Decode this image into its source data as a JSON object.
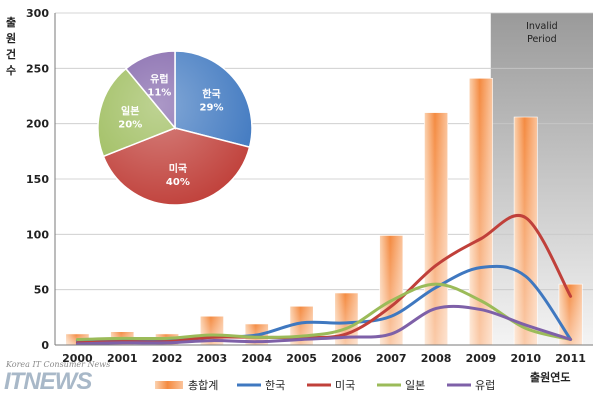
{
  "chart_data": [
    {
      "type": "bar",
      "categories": [
        "2000",
        "2001",
        "2002",
        "2003",
        "2004",
        "2005",
        "2006",
        "2007",
        "2008",
        "2009",
        "2010",
        "2011"
      ],
      "ylim": [
        0,
        300
      ],
      "yticks": [
        0,
        50,
        100,
        150,
        200,
        250,
        300
      ],
      "ylabel": "출원건수",
      "xlabel": "출원연도",
      "grid": true,
      "shaded_region": {
        "from": "2010",
        "to": "2011",
        "label_line1": "Invalid",
        "label_line2": "Period",
        "color": "#a8a8a8"
      },
      "series": [
        {
          "name": "총합계",
          "kind": "bar",
          "color": "#f7a060",
          "values": [
            10,
            12,
            10,
            26,
            19,
            35,
            47,
            99,
            210,
            241,
            206,
            55
          ]
        },
        {
          "name": "한국",
          "kind": "line",
          "color": "#3f78c0",
          "values": [
            4,
            5,
            5,
            7,
            9,
            20,
            20,
            26,
            52,
            70,
            62,
            5
          ]
        },
        {
          "name": "미국",
          "kind": "line",
          "color": "#c0403a",
          "values": [
            2,
            3,
            3,
            7,
            7,
            7,
            10,
            35,
            72,
            96,
            115,
            44
          ]
        },
        {
          "name": "일본",
          "kind": "line",
          "color": "#9bbb59",
          "values": [
            5,
            6,
            6,
            9,
            7,
            8,
            15,
            40,
            55,
            40,
            15,
            5
          ]
        },
        {
          "name": "유럽",
          "kind": "line",
          "color": "#7e60a8",
          "values": [
            1,
            2,
            2,
            4,
            3,
            5,
            7,
            10,
            33,
            32,
            18,
            5
          ]
        }
      ],
      "legend": {
        "placement": "bottom"
      }
    },
    {
      "type": "pie",
      "slices": [
        {
          "name": "한국",
          "value": 29,
          "label": "29%",
          "color": "#3f78c0"
        },
        {
          "name": "미국",
          "value": 40,
          "label": "40%",
          "color": "#c0403a"
        },
        {
          "name": "일본",
          "value": 20,
          "label": "20%",
          "color": "#9bbb59"
        },
        {
          "name": "유럽",
          "value": 11,
          "label": "11%",
          "color": "#7e60a8"
        }
      ],
      "placement": "top-left inset"
    }
  ],
  "watermark": {
    "tagline": "Korea IT Consumer News",
    "brand": "ITNEWS"
  }
}
